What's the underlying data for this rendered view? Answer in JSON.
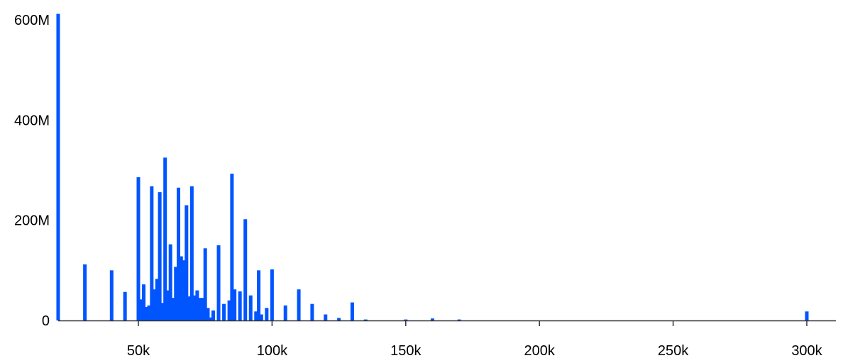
{
  "chart_data": {
    "type": "bar",
    "title": "",
    "xlabel": "",
    "ylabel": "",
    "xlim": [
      20000,
      310000
    ],
    "ylim": [
      0,
      620000000
    ],
    "grid": false,
    "legend": "none",
    "bar_color": "#0055ff",
    "x_ticks": [
      {
        "value": 50000,
        "label": "50k"
      },
      {
        "value": 100000,
        "label": "100k"
      },
      {
        "value": 150000,
        "label": "150k"
      },
      {
        "value": 200000,
        "label": "200k"
      },
      {
        "value": 250000,
        "label": "250k"
      },
      {
        "value": 300000,
        "label": "300k"
      }
    ],
    "y_ticks": [
      {
        "value": 0,
        "label": "0"
      },
      {
        "value": 200000000,
        "label": "200M"
      },
      {
        "value": 400000000,
        "label": "400M"
      },
      {
        "value": 600000000,
        "label": "600M"
      }
    ],
    "x": [
      20000,
      30000,
      40000,
      45000,
      50000,
      51000,
      52000,
      53000,
      54000,
      55000,
      56000,
      57000,
      58000,
      59000,
      60000,
      61000,
      62000,
      63000,
      64000,
      65000,
      66000,
      67000,
      68000,
      69000,
      70000,
      71000,
      72000,
      73000,
      74000,
      75000,
      76000,
      77000,
      78000,
      80000,
      82000,
      84000,
      85000,
      86000,
      88000,
      90000,
      92000,
      94000,
      95000,
      96000,
      98000,
      100000,
      105000,
      110000,
      115000,
      120000,
      125000,
      130000,
      135000,
      150000,
      160000,
      170000,
      300000
    ],
    "values": [
      612000000,
      112000000,
      100000000,
      57000000,
      286000000,
      42000000,
      72000000,
      27000000,
      30000000,
      268000000,
      62000000,
      83000000,
      256000000,
      35000000,
      325000000,
      60000000,
      152000000,
      45000000,
      107000000,
      265000000,
      128000000,
      120000000,
      230000000,
      48000000,
      268000000,
      50000000,
      60000000,
      45000000,
      45000000,
      144000000,
      25000000,
      6000000,
      20000000,
      150000000,
      33000000,
      40000000,
      293000000,
      62000000,
      58000000,
      202000000,
      50000000,
      18000000,
      100000000,
      12000000,
      25000000,
      102000000,
      30000000,
      62000000,
      33000000,
      12000000,
      5000000,
      36000000,
      2000000,
      2000000,
      4000000,
      2000000,
      18000000
    ]
  }
}
